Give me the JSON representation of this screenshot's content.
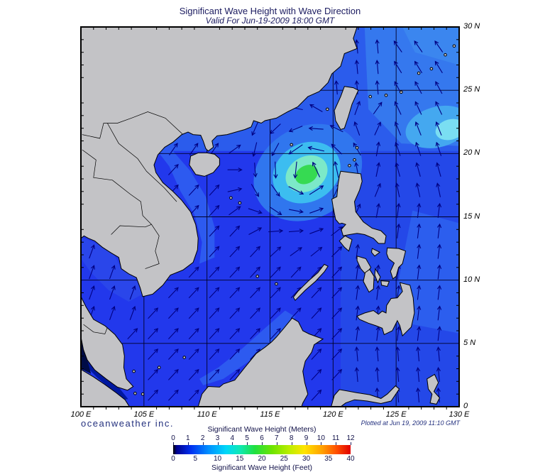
{
  "header": {
    "title": "Significant Wave Height with Wave Direction",
    "subtitle": "Valid For Jun-19-2009 18:00 GMT"
  },
  "footer": {
    "branding": "oceanweather inc.",
    "plotted_at": "Plotted at Jun 19, 2009 11:10 GMT"
  },
  "map": {
    "extent": {
      "lon_min": 100,
      "lon_max": 130,
      "lat_min": 0,
      "lat_max": 30
    },
    "grid_interval_deg": 5,
    "x_axis_labels": [
      "100 E",
      "105 E",
      "110 E",
      "115 E",
      "120 E",
      "125 E",
      "130 E"
    ],
    "y_axis_labels": [
      "30 N",
      "25 N",
      "20 N",
      "15 N",
      "10 N",
      "5 N",
      "0"
    ],
    "colors": {
      "land": "#c3c3c6",
      "coastline": "#000000",
      "grid": "#000026",
      "arrow": "#000082",
      "ocean_base": "#2238ec",
      "cyclone_peak_green": "#36da52",
      "calm_dark": "#000c46"
    },
    "features": {
      "cyclone": {
        "center_lon": 118.0,
        "center_lat": 18.5,
        "rotation": "counterclockwise",
        "peak_significant_wave_height_m": 5
      },
      "wave_heights_m": {
        "cyclone_peak": 5,
        "south_china_sea": 2,
        "pacific_east_of_philippines": 2,
        "northeast_taiwan_patch": 3,
        "gulf_of_thailand": 1.5,
        "malacca_strait": 0.5
      },
      "background_wave_direction": "southwest monsoon, waves travelling toward NE in South China Sea; toward N east of the Philippines; toward NW northeast of Taiwan"
    }
  },
  "colorbar": {
    "title_meters": "Significant Wave Height (Meters)",
    "title_feet": "Significant Wave Height (Feet)",
    "meters_ticks": [
      "0",
      "1",
      "2",
      "3",
      "4",
      "5",
      "6",
      "7",
      "8",
      "9",
      "10",
      "11",
      "12"
    ],
    "feet_ticks": [
      "0",
      "5",
      "10",
      "15",
      "20",
      "25",
      "30",
      "35",
      "40"
    ],
    "gradient_stops": [
      {
        "p": 0,
        "c": "#000000"
      },
      {
        "p": 2,
        "c": "#000090"
      },
      {
        "p": 10,
        "c": "#0030f0"
      },
      {
        "p": 20,
        "c": "#0090ff"
      },
      {
        "p": 30,
        "c": "#00d8f8"
      },
      {
        "p": 38,
        "c": "#10e8b0"
      },
      {
        "p": 46,
        "c": "#20e040"
      },
      {
        "p": 56,
        "c": "#70e400"
      },
      {
        "p": 66,
        "c": "#c0ee00"
      },
      {
        "p": 74,
        "c": "#ffe400"
      },
      {
        "p": 84,
        "c": "#ffa000"
      },
      {
        "p": 92,
        "c": "#ff5000"
      },
      {
        "p": 100,
        "c": "#e00000"
      }
    ]
  }
}
